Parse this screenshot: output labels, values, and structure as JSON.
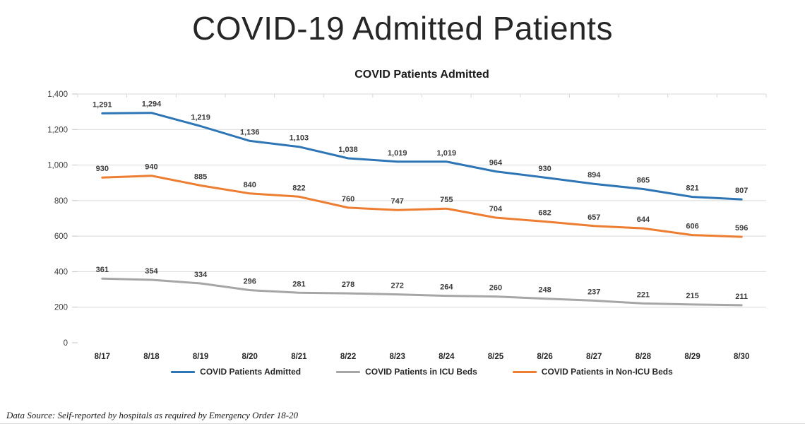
{
  "page": {
    "main_title": "COVID-19 Admitted Patients",
    "footer_note": "Data Source: Self-reported by hospitals as required by Emergency Order 18-20"
  },
  "chart_data": {
    "type": "line",
    "title": "COVID Patients Admitted",
    "categories": [
      "8/17",
      "8/18",
      "8/19",
      "8/20",
      "8/21",
      "8/22",
      "8/23",
      "8/24",
      "8/25",
      "8/26",
      "8/27",
      "8/28",
      "8/29",
      "8/30"
    ],
    "series": [
      {
        "name": "COVID Patients Admitted",
        "color": "#2E75B6",
        "values": [
          1291,
          1294,
          1219,
          1136,
          1103,
          1038,
          1019,
          1019,
          964,
          930,
          894,
          865,
          821,
          807
        ]
      },
      {
        "name": "COVID Patients in ICU Beds",
        "color": "#A6A6A6",
        "values": [
          361,
          354,
          334,
          296,
          281,
          278,
          272,
          264,
          260,
          248,
          237,
          221,
          215,
          211
        ]
      },
      {
        "name": "COVID Patients in Non-ICU Beds",
        "color": "#ED7D31",
        "values": [
          930,
          940,
          885,
          840,
          822,
          760,
          747,
          755,
          704,
          682,
          657,
          644,
          606,
          596
        ]
      }
    ],
    "ylim": [
      0,
      1400
    ],
    "ytick_step": 200,
    "grid": true,
    "data_labels": true,
    "legend_position": "bottom",
    "gridline_color": "#d9d9d9",
    "tick_color": "#c6c6c6"
  }
}
